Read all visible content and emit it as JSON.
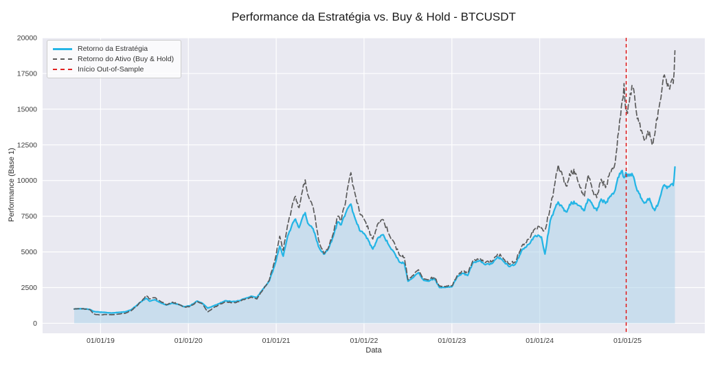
{
  "title": "Performance da Estratégia vs. Buy & Hold - BTCUSDT",
  "legend": {
    "items": [
      {
        "label": "Retorno da Estratégia",
        "color": "#25b5e5",
        "style": "solid"
      },
      {
        "label": "Retorno do Ativo (Buy & Hold)",
        "color": "#5a5a5a",
        "style": "dashed"
      },
      {
        "label": "Início Out-of-Sample",
        "color": "#e02020",
        "style": "dashed"
      }
    ]
  },
  "colors": {
    "axes_background": "#e9e9f1",
    "grid": "#ffffff",
    "strategy_line": "#25b5e5",
    "strategy_fill": "#aed4ea",
    "asset_line": "#5a5a5a",
    "oos_line": "#e02020",
    "tick_text": "#3a3a3a"
  },
  "chart_data": {
    "type": "line",
    "title": "Performance da Estratégia vs. Buy & Hold - BTCUSDT",
    "xlabel": "Data",
    "ylabel": "Performance (Base 1)",
    "grid": true,
    "legend_position": "upper-left",
    "xlim": [
      2018.34,
      2025.88
    ],
    "ylim": [
      -700,
      20000
    ],
    "x_ticks": [
      {
        "x": 2019,
        "label": "01/01/19"
      },
      {
        "x": 2020,
        "label": "01/01/20"
      },
      {
        "x": 2021,
        "label": "01/01/21"
      },
      {
        "x": 2022,
        "label": "01/01/22"
      },
      {
        "x": 2023,
        "label": "01/01/23"
      },
      {
        "x": 2024,
        "label": "01/01/24"
      },
      {
        "x": 2025,
        "label": "01/01/25"
      }
    ],
    "y_ticks": [
      {
        "y": 0,
        "label": "0"
      },
      {
        "y": 2500,
        "label": "2500"
      },
      {
        "y": 5000,
        "label": "5000"
      },
      {
        "y": 7500,
        "label": "7500"
      },
      {
        "y": 10000,
        "label": "10000"
      },
      {
        "y": 12500,
        "label": "12500"
      },
      {
        "y": 15000,
        "label": "15000"
      },
      {
        "y": 17500,
        "label": "17500"
      },
      {
        "y": 20000,
        "label": "20000"
      }
    ],
    "annotations": [
      {
        "name": "oos-start-line",
        "label": "Início Out-of-Sample",
        "x": 2024.985,
        "style": "vertical-dashed",
        "color": "#e02020"
      }
    ],
    "series": [
      {
        "name": "Retorno da Estratégia",
        "color": "#25b5e5",
        "style": "solid",
        "fill_to_zero": true,
        "noise": 0.015,
        "points": [
          [
            2018.7,
            1000
          ],
          [
            2018.76,
            1020
          ],
          [
            2018.84,
            1000
          ],
          [
            2018.88,
            960
          ],
          [
            2018.92,
            830
          ],
          [
            2018.96,
            800
          ],
          [
            2019.0,
            780
          ],
          [
            2019.06,
            760
          ],
          [
            2019.12,
            720
          ],
          [
            2019.2,
            760
          ],
          [
            2019.28,
            800
          ],
          [
            2019.35,
            950
          ],
          [
            2019.42,
            1300
          ],
          [
            2019.48,
            1600
          ],
          [
            2019.52,
            1750
          ],
          [
            2019.56,
            1550
          ],
          [
            2019.62,
            1650
          ],
          [
            2019.68,
            1450
          ],
          [
            2019.75,
            1280
          ],
          [
            2019.82,
            1420
          ],
          [
            2019.88,
            1330
          ],
          [
            2019.95,
            1160
          ],
          [
            2020.02,
            1230
          ],
          [
            2020.1,
            1560
          ],
          [
            2020.16,
            1400
          ],
          [
            2020.22,
            1060
          ],
          [
            2020.28,
            1200
          ],
          [
            2020.35,
            1380
          ],
          [
            2020.42,
            1580
          ],
          [
            2020.5,
            1520
          ],
          [
            2020.58,
            1580
          ],
          [
            2020.65,
            1750
          ],
          [
            2020.72,
            1900
          ],
          [
            2020.78,
            1800
          ],
          [
            2020.85,
            2400
          ],
          [
            2020.92,
            2950
          ],
          [
            2020.98,
            4000
          ],
          [
            2021.04,
            5400
          ],
          [
            2021.08,
            4700
          ],
          [
            2021.13,
            6100
          ],
          [
            2021.18,
            6900
          ],
          [
            2021.22,
            7300
          ],
          [
            2021.26,
            6700
          ],
          [
            2021.3,
            7400
          ],
          [
            2021.33,
            7750
          ],
          [
            2021.36,
            7000
          ],
          [
            2021.4,
            6800
          ],
          [
            2021.44,
            6300
          ],
          [
            2021.48,
            5400
          ],
          [
            2021.52,
            5000
          ],
          [
            2021.55,
            4850
          ],
          [
            2021.6,
            5300
          ],
          [
            2021.65,
            6100
          ],
          [
            2021.7,
            7100
          ],
          [
            2021.74,
            6900
          ],
          [
            2021.79,
            7700
          ],
          [
            2021.85,
            8350
          ],
          [
            2021.9,
            7300
          ],
          [
            2021.95,
            6500
          ],
          [
            2022.0,
            6300
          ],
          [
            2022.05,
            5800
          ],
          [
            2022.1,
            5200
          ],
          [
            2022.16,
            6000
          ],
          [
            2022.22,
            6200
          ],
          [
            2022.28,
            5500
          ],
          [
            2022.34,
            5000
          ],
          [
            2022.4,
            4300
          ],
          [
            2022.46,
            4200
          ],
          [
            2022.5,
            2950
          ],
          [
            2022.56,
            3200
          ],
          [
            2022.62,
            3550
          ],
          [
            2022.68,
            3000
          ],
          [
            2022.74,
            2950
          ],
          [
            2022.8,
            3150
          ],
          [
            2022.86,
            2500
          ],
          [
            2022.92,
            2520
          ],
          [
            2023.0,
            2560
          ],
          [
            2023.06,
            3250
          ],
          [
            2023.12,
            3500
          ],
          [
            2023.18,
            3350
          ],
          [
            2023.24,
            4250
          ],
          [
            2023.32,
            4400
          ],
          [
            2023.38,
            4100
          ],
          [
            2023.46,
            4200
          ],
          [
            2023.52,
            4650
          ],
          [
            2023.58,
            4400
          ],
          [
            2023.65,
            3980
          ],
          [
            2023.72,
            4120
          ],
          [
            2023.8,
            5150
          ],
          [
            2023.88,
            5550
          ],
          [
            2023.95,
            6150
          ],
          [
            2024.02,
            6050
          ],
          [
            2024.06,
            4850
          ],
          [
            2024.12,
            7200
          ],
          [
            2024.17,
            8000
          ],
          [
            2024.21,
            8500
          ],
          [
            2024.26,
            8100
          ],
          [
            2024.31,
            7800
          ],
          [
            2024.36,
            8500
          ],
          [
            2024.41,
            8400
          ],
          [
            2024.46,
            8200
          ],
          [
            2024.51,
            7900
          ],
          [
            2024.55,
            8700
          ],
          [
            2024.6,
            8300
          ],
          [
            2024.65,
            7900
          ],
          [
            2024.7,
            8700
          ],
          [
            2024.75,
            8400
          ],
          [
            2024.8,
            8900
          ],
          [
            2024.85,
            9200
          ],
          [
            2024.88,
            9900
          ],
          [
            2024.91,
            10500
          ],
          [
            2024.94,
            10700
          ],
          [
            2024.96,
            10200
          ],
          [
            2024.98,
            10550
          ],
          [
            2025.0,
            10300
          ],
          [
            2025.03,
            10450
          ],
          [
            2025.06,
            10350
          ],
          [
            2025.09,
            9700
          ],
          [
            2025.13,
            9100
          ],
          [
            2025.17,
            8600
          ],
          [
            2025.21,
            8450
          ],
          [
            2025.25,
            8750
          ],
          [
            2025.28,
            8200
          ],
          [
            2025.31,
            7900
          ],
          [
            2025.35,
            8400
          ],
          [
            2025.39,
            9300
          ],
          [
            2025.42,
            9700
          ],
          [
            2025.45,
            9450
          ],
          [
            2025.48,
            9600
          ],
          [
            2025.5,
            9750
          ],
          [
            2025.52,
            9650
          ],
          [
            2025.54,
            10950
          ]
        ]
      },
      {
        "name": "Retorno do Ativo (Buy & Hold)",
        "color": "#5a5a5a",
        "style": "dashed",
        "fill_to_zero": false,
        "noise": 0.025,
        "points": [
          [
            2018.7,
            1000
          ],
          [
            2018.76,
            1015
          ],
          [
            2018.84,
            990
          ],
          [
            2018.88,
            950
          ],
          [
            2018.92,
            650
          ],
          [
            2018.96,
            610
          ],
          [
            2019.0,
            580
          ],
          [
            2019.06,
            620
          ],
          [
            2019.12,
            600
          ],
          [
            2019.2,
            640
          ],
          [
            2019.28,
            700
          ],
          [
            2019.35,
            880
          ],
          [
            2019.42,
            1250
          ],
          [
            2019.48,
            1650
          ],
          [
            2019.52,
            1950
          ],
          [
            2019.56,
            1700
          ],
          [
            2019.62,
            1800
          ],
          [
            2019.68,
            1550
          ],
          [
            2019.75,
            1300
          ],
          [
            2019.82,
            1480
          ],
          [
            2019.88,
            1350
          ],
          [
            2019.95,
            1130
          ],
          [
            2020.02,
            1160
          ],
          [
            2020.1,
            1530
          ],
          [
            2020.16,
            1350
          ],
          [
            2020.22,
            790
          ],
          [
            2020.28,
            1060
          ],
          [
            2020.35,
            1300
          ],
          [
            2020.42,
            1500
          ],
          [
            2020.5,
            1440
          ],
          [
            2020.58,
            1510
          ],
          [
            2020.65,
            1700
          ],
          [
            2020.72,
            1830
          ],
          [
            2020.78,
            1700
          ],
          [
            2020.85,
            2350
          ],
          [
            2020.92,
            3000
          ],
          [
            2020.98,
            4300
          ],
          [
            2021.04,
            6100
          ],
          [
            2021.08,
            5100
          ],
          [
            2021.13,
            6900
          ],
          [
            2021.18,
            8200
          ],
          [
            2021.22,
            8900
          ],
          [
            2021.26,
            8100
          ],
          [
            2021.3,
            9300
          ],
          [
            2021.33,
            10050
          ],
          [
            2021.36,
            9000
          ],
          [
            2021.4,
            8500
          ],
          [
            2021.44,
            7600
          ],
          [
            2021.48,
            5900
          ],
          [
            2021.52,
            5200
          ],
          [
            2021.55,
            4900
          ],
          [
            2021.6,
            5400
          ],
          [
            2021.65,
            6300
          ],
          [
            2021.7,
            7500
          ],
          [
            2021.74,
            7200
          ],
          [
            2021.79,
            8500
          ],
          [
            2021.85,
            10550
          ],
          [
            2021.9,
            9000
          ],
          [
            2021.95,
            7700
          ],
          [
            2022.0,
            7300
          ],
          [
            2022.05,
            6600
          ],
          [
            2022.1,
            5900
          ],
          [
            2022.16,
            7000
          ],
          [
            2022.22,
            7250
          ],
          [
            2022.28,
            6300
          ],
          [
            2022.34,
            5700
          ],
          [
            2022.4,
            4800
          ],
          [
            2022.46,
            4600
          ],
          [
            2022.5,
            3050
          ],
          [
            2022.56,
            3350
          ],
          [
            2022.62,
            3750
          ],
          [
            2022.68,
            3100
          ],
          [
            2022.74,
            3050
          ],
          [
            2022.8,
            3250
          ],
          [
            2022.86,
            2600
          ],
          [
            2022.92,
            2580
          ],
          [
            2023.0,
            2620
          ],
          [
            2023.06,
            3350
          ],
          [
            2023.12,
            3650
          ],
          [
            2023.18,
            3500
          ],
          [
            2023.24,
            4400
          ],
          [
            2023.32,
            4550
          ],
          [
            2023.38,
            4250
          ],
          [
            2023.46,
            4350
          ],
          [
            2023.52,
            4850
          ],
          [
            2023.58,
            4600
          ],
          [
            2023.65,
            4150
          ],
          [
            2023.72,
            4300
          ],
          [
            2023.8,
            5450
          ],
          [
            2023.88,
            5900
          ],
          [
            2023.95,
            6650
          ],
          [
            2024.02,
            6700
          ],
          [
            2024.06,
            6500
          ],
          [
            2024.12,
            8100
          ],
          [
            2024.17,
            9700
          ],
          [
            2024.21,
            11100
          ],
          [
            2024.26,
            10300
          ],
          [
            2024.31,
            9600
          ],
          [
            2024.36,
            10700
          ],
          [
            2024.41,
            10500
          ],
          [
            2024.46,
            9500
          ],
          [
            2024.51,
            8900
          ],
          [
            2024.55,
            10400
          ],
          [
            2024.6,
            9300
          ],
          [
            2024.65,
            8800
          ],
          [
            2024.7,
            10100
          ],
          [
            2024.75,
            9500
          ],
          [
            2024.8,
            10600
          ],
          [
            2024.85,
            11000
          ],
          [
            2024.88,
            12300
          ],
          [
            2024.91,
            14200
          ],
          [
            2024.94,
            15600
          ],
          [
            2024.96,
            16800
          ],
          [
            2024.98,
            14900
          ],
          [
            2025.0,
            14700
          ],
          [
            2025.03,
            16100
          ],
          [
            2025.06,
            16500
          ],
          [
            2025.09,
            15300
          ],
          [
            2025.13,
            14000
          ],
          [
            2025.17,
            13300
          ],
          [
            2025.21,
            12900
          ],
          [
            2025.25,
            13400
          ],
          [
            2025.28,
            12500
          ],
          [
            2025.31,
            13200
          ],
          [
            2025.35,
            14900
          ],
          [
            2025.39,
            16300
          ],
          [
            2025.42,
            17400
          ],
          [
            2025.45,
            16600
          ],
          [
            2025.48,
            16400
          ],
          [
            2025.5,
            17000
          ],
          [
            2025.52,
            16800
          ],
          [
            2025.54,
            19100
          ]
        ]
      }
    ]
  }
}
